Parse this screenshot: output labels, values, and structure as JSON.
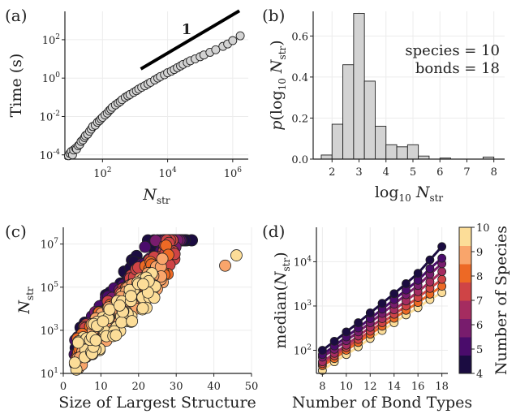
{
  "figure": {
    "panels": [
      {
        "letter": "(a)"
      },
      {
        "letter": "(b)"
      },
      {
        "letter": "(c)"
      },
      {
        "letter": "(d)"
      }
    ]
  },
  "chart_data": [
    {
      "panel": "(a)",
      "type": "scatter",
      "xlabel": "N_str",
      "ylabel": "Time (s)",
      "xscale": "log",
      "yscale": "log",
      "xlim": [
        7,
        3000000
      ],
      "ylim": [
        6e-05,
        3000
      ],
      "xticks": [
        {
          "v": 100,
          "e": "2"
        },
        {
          "v": 10000,
          "e": "4"
        },
        {
          "v": 1000000,
          "e": "6"
        }
      ],
      "yticks": [
        {
          "v": 0.0001,
          "e": "-4"
        },
        {
          "v": 0.01,
          "e": "-2"
        },
        {
          "v": 1,
          "e": "0"
        },
        {
          "v": 100,
          "e": "2"
        }
      ],
      "grid": true,
      "marker_color": "#d3d3d3",
      "slope_line": {
        "x": [
          1500,
          1600000
        ],
        "y": [
          3,
          3200
        ],
        "label": "1"
      },
      "x": [
        9,
        10,
        11,
        12,
        13,
        15,
        16,
        18,
        20,
        22,
        25,
        28,
        30,
        35,
        40,
        45,
        50,
        60,
        70,
        80,
        90,
        100,
        120,
        140,
        160,
        180,
        200,
        250,
        300,
        350,
        400,
        500,
        600,
        700,
        900,
        1100,
        1300,
        1600,
        2000,
        2500,
        3000,
        4000,
        5000,
        6000,
        8000,
        10000,
        13000,
        16000,
        20000,
        25000,
        30000,
        40000,
        50000,
        70000,
        100000,
        130000,
        200000,
        300000,
        500000,
        700000,
        1000000,
        1700000
      ],
      "y": [
        9e-05,
        0.00012,
        0.00015,
        0.0001,
        0.00018,
        0.00022,
        0.0002,
        0.0003,
        0.00035,
        0.0005,
        0.0006,
        0.0008,
        0.001,
        0.0012,
        0.0017,
        0.0022,
        0.003,
        0.0035,
        0.005,
        0.006,
        0.0075,
        0.009,
        0.012,
        0.015,
        0.02,
        0.024,
        0.03,
        0.04,
        0.05,
        0.06,
        0.075,
        0.1,
        0.12,
        0.14,
        0.18,
        0.22,
        0.27,
        0.33,
        0.4,
        0.5,
        0.6,
        0.8,
        1.0,
        1.2,
        1.5,
        1.9,
        2.3,
        2.8,
        3.5,
        4.3,
        5.2,
        6.5,
        8,
        10,
        13,
        16,
        22,
        30,
        45,
        60,
        90,
        160
      ]
    },
    {
      "panel": "(b)",
      "type": "bar",
      "xlabel": "log_10 N_str",
      "ylabel": "p(log_10 N_str)",
      "xlim": [
        1.3,
        8.4
      ],
      "ylim": [
        0,
        0.72
      ],
      "xticks": [
        "2",
        "3",
        "4",
        "5",
        "6",
        "7",
        "8"
      ],
      "yticks": [
        "0.0",
        "0.2",
        "0.4",
        "0.6"
      ],
      "bin_width": 0.4,
      "bin_left_edges": [
        1.6,
        2.0,
        2.4,
        2.8,
        3.2,
        3.6,
        4.0,
        4.4,
        4.8,
        5.2,
        5.6,
        6.0,
        6.4,
        6.8,
        7.2,
        7.6
      ],
      "values": [
        0.02,
        0.17,
        0.46,
        0.71,
        0.38,
        0.16,
        0.07,
        0.06,
        0.07,
        0.015,
        0,
        0.005,
        0,
        0,
        0,
        0.01
      ],
      "bar_color": "#d3d3d3",
      "grid": true,
      "annotation": [
        "species = 10",
        "bonds = 18"
      ]
    },
    {
      "panel": "(c)",
      "type": "scatter",
      "xlabel": "Size of Largest Structure",
      "ylabel": "N_str",
      "yscale": "log",
      "xlim": [
        0,
        50
      ],
      "ylim": [
        10,
        60000000
      ],
      "xticks": [
        "0",
        "10",
        "20",
        "30",
        "40",
        "50"
      ],
      "yticks": [
        {
          "v": 10,
          "e": "1"
        },
        {
          "v": 1000,
          "e": "3"
        },
        {
          "v": 100000,
          "e": "5"
        },
        {
          "v": 10000000,
          "e": "7"
        }
      ],
      "grid": true,
      "color_by": "number of species (4–10), colors from panel (d) colorbar",
      "outliers": [
        {
          "x": 43,
          "y": 1000000,
          "species": 9
        },
        {
          "x": 46,
          "y": 3000000,
          "species": 10
        }
      ]
    },
    {
      "panel": "(d)",
      "type": "line",
      "xlabel": "Number of Bond Types",
      "ylabel": "median(N_str)",
      "yscale": "log",
      "xlim": [
        7.5,
        18.5
      ],
      "ylim": [
        30,
        60000
      ],
      "xticks": [
        "8",
        "10",
        "12",
        "14",
        "16",
        "18"
      ],
      "yticks": [
        {
          "v": 100,
          "e": "2"
        },
        {
          "v": 1000,
          "e": "3"
        },
        {
          "v": 10000,
          "e": "4"
        }
      ],
      "x": [
        8,
        9,
        10,
        11,
        12,
        13,
        14,
        15,
        16,
        17,
        18
      ],
      "series": [
        {
          "species": 4,
          "color": "#1b0c41",
          "values": [
            100,
            160,
            260,
            420,
            700,
            1150,
            1900,
            3200,
            5500,
            11000,
            22000
          ]
        },
        {
          "species": 5,
          "color": "#4a0c6b",
          "values": [
            80,
            125,
            200,
            320,
            520,
            850,
            1400,
            2300,
            3800,
            7000,
            12000
          ]
        },
        {
          "species": 6,
          "color": "#781c6d",
          "values": [
            70,
            105,
            165,
            260,
            420,
            680,
            1100,
            1800,
            2900,
            5200,
            9000
          ]
        },
        {
          "species": 7,
          "color": "#a52c60",
          "values": [
            55,
            85,
            130,
            210,
            330,
            520,
            820,
            1300,
            2100,
            3500,
            6000
          ]
        },
        {
          "species": 8,
          "color": "#cf4446",
          "values": [
            50,
            75,
            115,
            175,
            270,
            420,
            650,
            1000,
            1550,
            2500,
            4000
          ]
        },
        {
          "species": 9,
          "color": "#ed6925",
          "values": [
            45,
            65,
            100,
            150,
            230,
            350,
            530,
            800,
            1200,
            1850,
            2800
          ]
        },
        {
          "species": 10,
          "color": "#fcdd98",
          "values": [
            35,
            55,
            80,
            120,
            185,
            280,
            420,
            630,
            920,
            1400,
            2000
          ]
        }
      ],
      "colorbar": {
        "label": "Number of Species",
        "ticks": [
          "4",
          "5",
          "6",
          "7",
          "8",
          "9",
          "10"
        ],
        "colors": [
          "#1b0c41",
          "#4a0c6b",
          "#781c6d",
          "#a52c60",
          "#cf4446",
          "#ed6925",
          "#f9a56b",
          "#fcdd98"
        ]
      }
    }
  ]
}
